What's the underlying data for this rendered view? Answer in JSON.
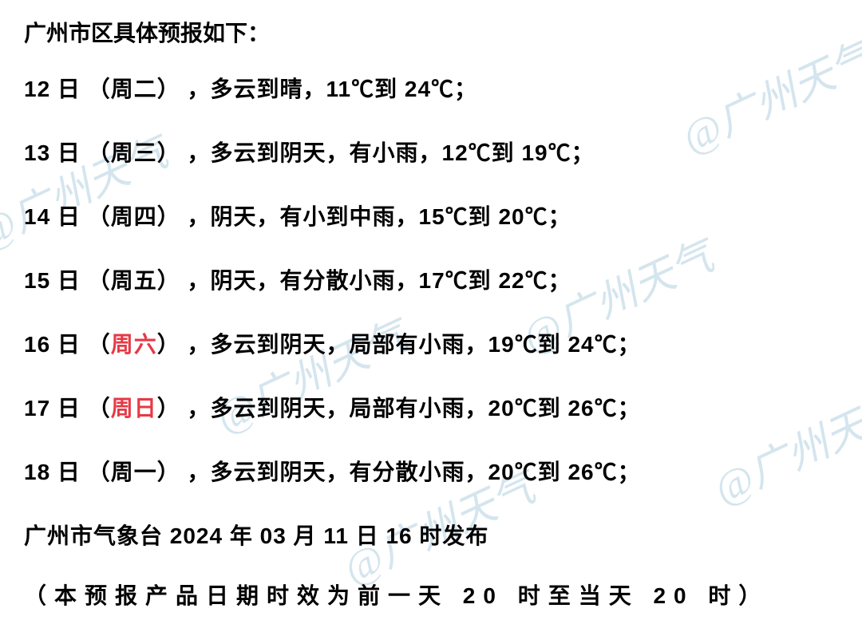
{
  "title": "广州市区具体预报如下：",
  "forecasts": [
    {
      "day": "12 日",
      "weekday": "（周二）",
      "weekend": false,
      "weather": "，多云到晴，11℃到 24℃；"
    },
    {
      "day": "13 日",
      "weekday": "（周三）",
      "weekend": false,
      "weather": "，多云到阴天，有小雨，12℃到 19℃；"
    },
    {
      "day": "14 日",
      "weekday": "（周四）",
      "weekend": false,
      "weather": "，阴天，有小到中雨，15℃到 20℃；"
    },
    {
      "day": "15 日",
      "weekday": "（周五）",
      "weekend": false,
      "weather": "，阴天，有分散小雨，17℃到 22℃；"
    },
    {
      "day": "16 日",
      "weekday_open": "（",
      "weekday_name": "周六",
      "weekday_close": "）",
      "weekend": true,
      "weather": "，多云到阴天，局部有小雨，19℃到 24℃；"
    },
    {
      "day": "17 日",
      "weekday_open": "（",
      "weekday_name": "周日",
      "weekday_close": "）",
      "weekend": true,
      "weather": "，多云到阴天，局部有小雨，20℃到 26℃；"
    },
    {
      "day": "18 日",
      "weekday": "（周一）",
      "weekend": false,
      "weather": "，多云到阴天，有分散小雨，20℃到 26℃；"
    }
  ],
  "station": "广州市气象台 2024 年 03 月 11 日 16 时发布",
  "note": "（本预报产品日期时效为前一天 20 时至当天 20 时）",
  "watermark": "@广州天气",
  "styling": {
    "background_color": "#ffffff",
    "text_color": "#000000",
    "weekend_color": "#e63946",
    "watermark_color": "#b8d4e3",
    "watermark_opacity": 0.6,
    "font_size_body": 28,
    "font_size_watermark": 52,
    "font_weight": "bold",
    "watermark_rotation": -25,
    "line_spacing": 40
  }
}
